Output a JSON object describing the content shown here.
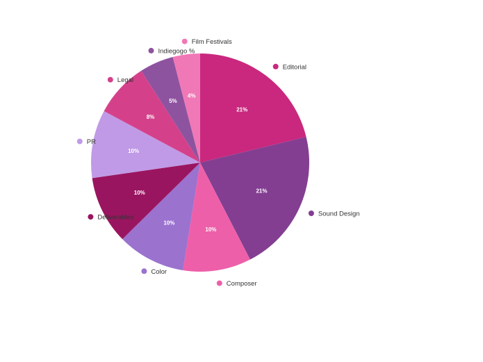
{
  "chart_data": {
    "type": "pie",
    "title": "",
    "categories": [
      "Editorial",
      "Sound Design",
      "Composer",
      "Color",
      "Deliverables",
      "PR",
      "Legal",
      "Indiegogo %",
      "Film Festivals"
    ],
    "values": [
      21,
      21,
      10,
      10,
      10,
      10,
      8,
      5,
      4
    ],
    "value_labels": [
      "21%",
      "21%",
      "10%",
      "10%",
      "10%",
      "10%",
      "8%",
      "5%",
      "4%"
    ],
    "colors": [
      "#C9287E",
      "#833E91",
      "#EE5FA9",
      "#9B72CE",
      "#9A1560",
      "#C09AE6",
      "#D4418A",
      "#8E539F",
      "#F178B6"
    ],
    "start_angle_deg": 0,
    "direction": "clockwise",
    "legend": "around-slices"
  }
}
